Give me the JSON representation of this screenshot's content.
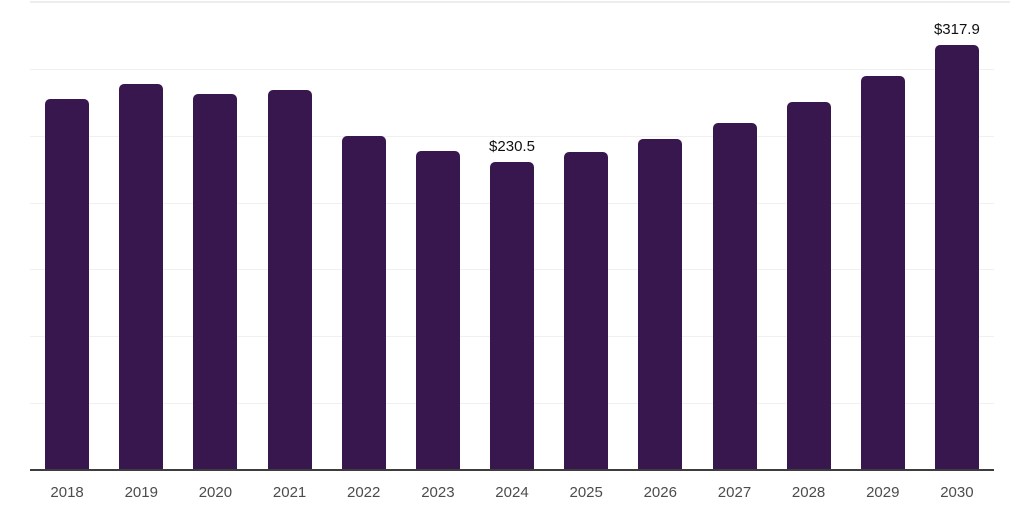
{
  "chart_data": {
    "type": "bar",
    "title": "",
    "xlabel": "",
    "ylabel": "",
    "categories": [
      "2018",
      "2019",
      "2020",
      "2021",
      "2022",
      "2023",
      "2024",
      "2025",
      "2026",
      "2027",
      "2028",
      "2029",
      "2030"
    ],
    "values": [
      277.5,
      289.0,
      280.9,
      284.3,
      250.0,
      238.5,
      230.5,
      238.0,
      247.8,
      259.6,
      275.2,
      294.5,
      317.9
    ],
    "annotations": [
      {
        "category": "2024",
        "text": "$230.5"
      },
      {
        "category": "2030",
        "text": "$317.9"
      }
    ],
    "ylim": [
      0,
      350
    ],
    "gridline_step": 50,
    "grid": true,
    "legend_position": "none",
    "colors": {
      "bar": "#38164e",
      "gridline": "#f0f0f0",
      "top_border": "#ededed",
      "axis_line": "#3d3d3d",
      "tick_label": "#4c4c4c",
      "annotation_label": "#101010",
      "background": "#ffffff"
    }
  }
}
